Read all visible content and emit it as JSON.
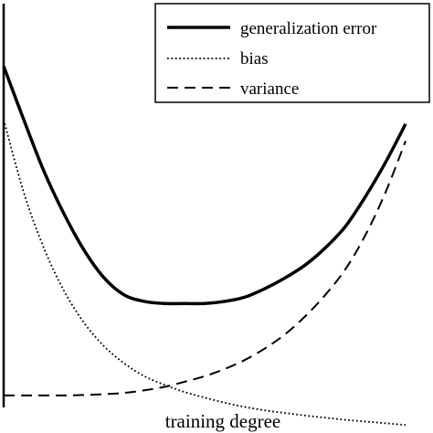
{
  "chart_data": {
    "type": "line",
    "title": "",
    "xlabel": "training degree",
    "ylabel": "",
    "xlim": [
      0,
      1
    ],
    "ylim": [
      0,
      1
    ],
    "grid": false,
    "ticks": false,
    "legend_position": "top-right",
    "series": [
      {
        "name": "generalization error",
        "style": "solid",
        "color": "#000000",
        "x": [
          0.0,
          0.05,
          0.1,
          0.15,
          0.2,
          0.25,
          0.3,
          0.35,
          0.4,
          0.45,
          0.5,
          0.55,
          0.6,
          0.65,
          0.7,
          0.75,
          0.8,
          0.85,
          0.9,
          0.95,
          1.0
        ],
        "y": [
          0.845,
          0.72,
          0.6,
          0.5,
          0.415,
          0.35,
          0.31,
          0.295,
          0.29,
          0.29,
          0.29,
          0.295,
          0.305,
          0.325,
          0.35,
          0.38,
          0.42,
          0.47,
          0.54,
          0.62,
          0.71
        ]
      },
      {
        "name": "bias",
        "style": "dotted",
        "color": "#000000",
        "x": [
          0.0,
          0.05,
          0.1,
          0.15,
          0.2,
          0.25,
          0.3,
          0.35,
          0.4,
          0.45,
          0.5,
          0.55,
          0.6,
          0.65,
          0.7,
          0.75,
          0.8,
          0.85,
          0.9,
          0.95,
          1.0
        ],
        "y": [
          0.72,
          0.55,
          0.42,
          0.32,
          0.245,
          0.19,
          0.15,
          0.12,
          0.1,
          0.083,
          0.07,
          0.058,
          0.048,
          0.04,
          0.034,
          0.028,
          0.023,
          0.018,
          0.014,
          0.01,
          0.006
        ]
      },
      {
        "name": "variance",
        "style": "dashed",
        "color": "#000000",
        "x": [
          0.0,
          0.05,
          0.1,
          0.15,
          0.2,
          0.25,
          0.3,
          0.35,
          0.4,
          0.45,
          0.5,
          0.55,
          0.6,
          0.65,
          0.7,
          0.75,
          0.8,
          0.85,
          0.9,
          0.95,
          1.0
        ],
        "y": [
          0.075,
          0.075,
          0.075,
          0.075,
          0.076,
          0.078,
          0.081,
          0.087,
          0.095,
          0.107,
          0.12,
          0.137,
          0.158,
          0.185,
          0.218,
          0.26,
          0.31,
          0.37,
          0.45,
          0.55,
          0.67
        ]
      }
    ]
  }
}
